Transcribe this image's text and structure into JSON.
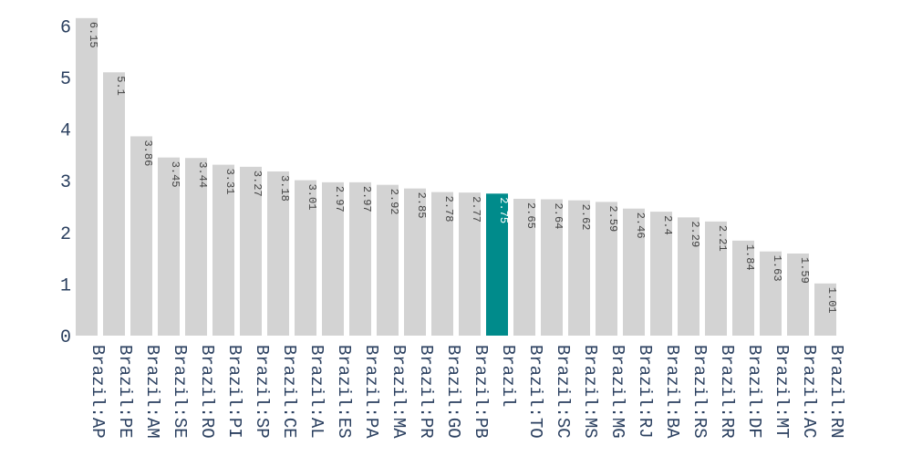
{
  "chart_data": {
    "type": "bar",
    "categories": [
      "Brazil:AP",
      "Brazil:PE",
      "Brazil:AM",
      "Brazil:SE",
      "Brazil:RO",
      "Brazil:PI",
      "Brazil:SP",
      "Brazil:CE",
      "Brazil:AL",
      "Brazil:ES",
      "Brazil:PA",
      "Brazil:MA",
      "Brazil:PR",
      "Brazil:GO",
      "Brazil:PB",
      "Brazil",
      "Brazil:TO",
      "Brazil:SC",
      "Brazil:MS",
      "Brazil:MG",
      "Brazil:RJ",
      "Brazil:BA",
      "Brazil:RS",
      "Brazil:RR",
      "Brazil:DF",
      "Brazil:MT",
      "Brazil:AC",
      "Brazil:RN"
    ],
    "values": [
      6.15,
      5.1,
      3.86,
      3.45,
      3.44,
      3.31,
      3.27,
      3.18,
      3.01,
      2.97,
      2.97,
      2.92,
      2.85,
      2.78,
      2.77,
      2.75,
      2.65,
      2.64,
      2.62,
      2.59,
      2.46,
      2.4,
      2.29,
      2.21,
      1.84,
      1.63,
      1.59,
      1.01
    ],
    "value_labels": [
      "6.15",
      "5.1",
      "3.86",
      "3.45",
      "3.44",
      "3.31",
      "3.27",
      "3.18",
      "3.01",
      "2.97",
      "2.97",
      "2.92",
      "2.85",
      "2.78",
      "2.77",
      "2.75",
      "2.65",
      "2.64",
      "2.62",
      "2.59",
      "2.46",
      "2.4",
      "2.29",
      "2.21",
      "1.84",
      "1.63",
      "1.59",
      "1.01"
    ],
    "highlighted_category": "Brazil",
    "y_ticks": [
      0,
      1,
      2,
      3,
      4,
      5,
      6
    ],
    "ylim": [
      0,
      6.2
    ],
    "grid": false,
    "legend": "none",
    "title": "",
    "xlabel": "",
    "ylabel": "",
    "colors": {
      "bar": "#d3d3d3",
      "highlight": "#008b8b",
      "label_on_bar": "#444444",
      "label_on_highlight": "#ffffff",
      "axis_text": "#2a3f5f"
    }
  }
}
